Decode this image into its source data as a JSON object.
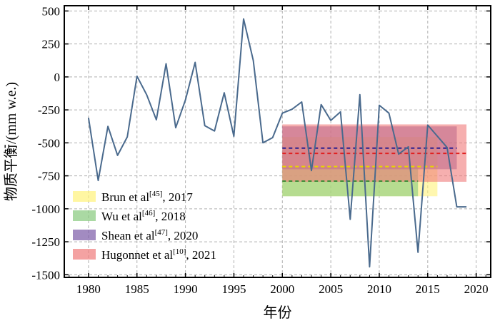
{
  "chart_data": {
    "type": "line",
    "xlabel": "年份",
    "ylabel": "物质平衡/(mm w.e.)",
    "xlim": [
      1977.5,
      2021.5
    ],
    "ylim": [
      -1520,
      540
    ],
    "xticks": [
      1980,
      1985,
      1990,
      1995,
      2000,
      2005,
      2010,
      2015,
      2020
    ],
    "yticks": [
      500,
      250,
      0,
      -250,
      -500,
      -750,
      -1000,
      -1250,
      -1500
    ],
    "grid": true,
    "legend_position": "bottom-left",
    "series": [
      {
        "color": "#4a6a8d",
        "x": [
          1980,
          1981,
          1982,
          1983,
          1984,
          1985,
          1986,
          1987,
          1988,
          1989,
          1990,
          1991,
          1992,
          1993,
          1994,
          1995,
          1996,
          1997,
          1998,
          1999,
          2000,
          2001,
          2002,
          2003,
          2004,
          2005,
          2006,
          2007,
          2008,
          2009,
          2010,
          2011,
          2012,
          2013,
          2014,
          2015,
          2016,
          2017,
          2018,
          2019
        ],
        "y": [
          -310,
          -785,
          -375,
          -595,
          -455,
          5,
          -135,
          -325,
          100,
          -385,
          -175,
          110,
          -370,
          -410,
          -120,
          -450,
          440,
          125,
          -500,
          -460,
          -275,
          -245,
          -190,
          -710,
          -210,
          -330,
          -265,
          -1080,
          -135,
          -1440,
          -215,
          -275,
          -585,
          -530,
          -1330,
          -365,
          -450,
          -535,
          -985,
          -985
        ]
      }
    ],
    "estimates": [
      {
        "label_prefix": "Brun et al",
        "label_ref": "[45]",
        "label_suffix": ", 2017",
        "fill_color": "#fff27a",
        "line_color": "#e8d400",
        "x_start": 2000,
        "x_end": 2016,
        "mean": -680,
        "low": -905,
        "high": -455
      },
      {
        "label_prefix": "Wu et al",
        "label_ref": "[46]",
        "label_suffix": ", 2018",
        "fill_color": "#86c97c",
        "line_color": "#3f8f3a",
        "x_start": 2000,
        "x_end": 2014,
        "mean": -790,
        "low": -905,
        "high": -680
      },
      {
        "label_prefix": "Shean et al",
        "label_ref": "[47]",
        "label_suffix": ", 2020",
        "fill_color": "#7b5aa6",
        "line_color": "#2a1f8f",
        "x_start": 2000,
        "x_end": 2018,
        "mean": -540,
        "low": -700,
        "high": -375
      },
      {
        "label_prefix": "Hugonnet et al",
        "label_ref": "[10]",
        "label_suffix": ", 2021",
        "fill_color": "#f07a7a",
        "line_color": "#e02020",
        "x_start": 2000,
        "x_end": 2019,
        "mean": -580,
        "low": -795,
        "high": -360
      }
    ]
  }
}
